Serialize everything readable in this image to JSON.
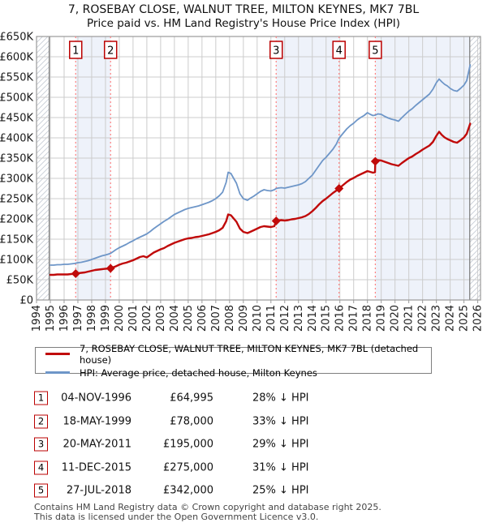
{
  "header": {
    "title": "7, ROSEBAY CLOSE, WALNUT TREE, MILTON KEYNES, MK7 7BL",
    "subtitle": "Price paid vs. HM Land Registry's House Price Index (HPI)"
  },
  "legend": {
    "items": [
      {
        "label": "7, ROSEBAY CLOSE, WALNUT TREE, MILTON KEYNES, MK7 7BL (detached house)",
        "color": "#c00a0a"
      },
      {
        "label": "HPI: Average price, detached house, Milton Keynes",
        "color": "#6e96c8"
      }
    ]
  },
  "transactions": [
    {
      "n": "1",
      "date": "04-NOV-1996",
      "price": "£64,995",
      "delta": "28% ↓ HPI",
      "year": 1996.84,
      "value_k": 65
    },
    {
      "n": "2",
      "date": "18-MAY-1999",
      "price": "£78,000",
      "delta": "33% ↓ HPI",
      "year": 1999.37,
      "value_k": 78
    },
    {
      "n": "3",
      "date": "20-MAY-2011",
      "price": "£195,000",
      "delta": "29% ↓ HPI",
      "year": 2011.38,
      "value_k": 195
    },
    {
      "n": "4",
      "date": "11-DEC-2015",
      "price": "£275,000",
      "delta": "31% ↓ HPI",
      "year": 2015.94,
      "value_k": 275
    },
    {
      "n": "5",
      "date": "27-JUL-2018",
      "price": "£342,000",
      "delta": "25% ↓ HPI",
      "year": 2018.57,
      "value_k": 342
    }
  ],
  "footer": {
    "line1": "Contains HM Land Registry data © Crown copyright and database right 2025.",
    "line2": "This data is licensed under the Open Government Licence v3.0."
  },
  "chart_data": {
    "type": "line",
    "title": "7, ROSEBAY CLOSE, WALNUT TREE, MILTON KEYNES, MK7 7BL",
    "xlabel": "",
    "ylabel": "",
    "unit": "£K",
    "x_axis": {
      "min": 1994,
      "max": 2026.2,
      "years": [
        1994,
        1995,
        1996,
        1997,
        1998,
        1999,
        2000,
        2001,
        2002,
        2003,
        2004,
        2005,
        2006,
        2007,
        2008,
        2009,
        2010,
        2011,
        2012,
        2013,
        2014,
        2015,
        2016,
        2017,
        2018,
        2019,
        2020,
        2021,
        2022,
        2023,
        2024,
        2025,
        2026
      ]
    },
    "y_axis": {
      "min": 0,
      "max": 650,
      "tick_values": [
        0,
        50,
        100,
        150,
        200,
        250,
        300,
        350,
        400,
        450,
        500,
        550,
        600,
        650
      ],
      "tick_labels": [
        "£0",
        "£50K",
        "£100K",
        "£150K",
        "£200K",
        "£250K",
        "£300K",
        "£350K",
        "£400K",
        "£450K",
        "£500K",
        "£550K",
        "£600K",
        "£650K"
      ]
    },
    "grid": true,
    "legend_position": "below",
    "data_start_year": 1994.92,
    "data_end_year": 2025.42,
    "ownership_bands": [
      [
        1996.84,
        1999.37
      ],
      [
        2011.38,
        2015.94
      ],
      [
        2018.57,
        2025.42
      ]
    ],
    "style": {
      "price_color": "#c00a0a",
      "hpi_color": "#6e96c8",
      "band_fill": "#eef2fa",
      "marker_line": "#ff8080",
      "marker_box_border": "#bb0000",
      "grid_color": "#cccccc",
      "frame_color": "#9a9a9a",
      "boundary_color": "#777777",
      "hatch_color": "#c8cdd6"
    },
    "series": [
      {
        "name": "price_paid",
        "points": [
          [
            1995.0,
            62
          ],
          [
            1995.25,
            62
          ],
          [
            1995.5,
            63
          ],
          [
            1995.75,
            63
          ],
          [
            1996.0,
            63
          ],
          [
            1996.25,
            63
          ],
          [
            1996.5,
            64
          ],
          [
            1996.84,
            65
          ],
          [
            1997.0,
            66
          ],
          [
            1997.25,
            67
          ],
          [
            1997.5,
            68
          ],
          [
            1997.75,
            70
          ],
          [
            1998.0,
            72
          ],
          [
            1998.25,
            74
          ],
          [
            1998.5,
            75
          ],
          [
            1998.75,
            76
          ],
          [
            1999.0,
            77
          ],
          [
            1999.37,
            78
          ],
          [
            1999.5,
            80
          ],
          [
            1999.75,
            83
          ],
          [
            2000.0,
            87
          ],
          [
            2000.25,
            90
          ],
          [
            2000.5,
            92
          ],
          [
            2000.75,
            95
          ],
          [
            2001.0,
            98
          ],
          [
            2001.25,
            102
          ],
          [
            2001.5,
            106
          ],
          [
            2001.75,
            108
          ],
          [
            2002.0,
            105
          ],
          [
            2002.25,
            111
          ],
          [
            2002.5,
            117
          ],
          [
            2002.75,
            121
          ],
          [
            2003.0,
            125
          ],
          [
            2003.25,
            128
          ],
          [
            2003.5,
            133
          ],
          [
            2003.75,
            137
          ],
          [
            2004.0,
            141
          ],
          [
            2004.25,
            144
          ],
          [
            2004.5,
            147
          ],
          [
            2004.75,
            150
          ],
          [
            2005.0,
            152
          ],
          [
            2005.25,
            153
          ],
          [
            2005.5,
            155
          ],
          [
            2005.75,
            156
          ],
          [
            2006.0,
            158
          ],
          [
            2006.25,
            160
          ],
          [
            2006.5,
            162
          ],
          [
            2006.75,
            165
          ],
          [
            2007.0,
            168
          ],
          [
            2007.25,
            172
          ],
          [
            2007.5,
            178
          ],
          [
            2007.75,
            194
          ],
          [
            2007.9,
            211
          ],
          [
            2008.1,
            209
          ],
          [
            2008.3,
            201
          ],
          [
            2008.5,
            193
          ],
          [
            2008.75,
            176
          ],
          [
            2009.0,
            168
          ],
          [
            2009.3,
            165
          ],
          [
            2009.5,
            168
          ],
          [
            2009.75,
            172
          ],
          [
            2010.0,
            176
          ],
          [
            2010.25,
            180
          ],
          [
            2010.5,
            182
          ],
          [
            2010.75,
            181
          ],
          [
            2011.0,
            180
          ],
          [
            2011.25,
            182
          ],
          [
            2011.38,
            195
          ],
          [
            2011.5,
            196
          ],
          [
            2011.75,
            197
          ],
          [
            2012.0,
            196
          ],
          [
            2012.25,
            197
          ],
          [
            2012.5,
            199
          ],
          [
            2012.75,
            200
          ],
          [
            2013.0,
            202
          ],
          [
            2013.25,
            204
          ],
          [
            2013.5,
            207
          ],
          [
            2013.75,
            212
          ],
          [
            2014.0,
            219
          ],
          [
            2014.25,
            227
          ],
          [
            2014.5,
            236
          ],
          [
            2014.75,
            244
          ],
          [
            2015.0,
            250
          ],
          [
            2015.25,
            257
          ],
          [
            2015.5,
            264
          ],
          [
            2015.75,
            270
          ],
          [
            2015.94,
            275
          ],
          [
            2016.25,
            284
          ],
          [
            2016.5,
            291
          ],
          [
            2016.75,
            297
          ],
          [
            2017.0,
            301
          ],
          [
            2017.25,
            306
          ],
          [
            2017.5,
            310
          ],
          [
            2017.75,
            314
          ],
          [
            2018.0,
            318
          ],
          [
            2018.2,
            316
          ],
          [
            2018.4,
            314
          ],
          [
            2018.55,
            315
          ],
          [
            2018.57,
            342
          ],
          [
            2018.75,
            345
          ],
          [
            2019.0,
            344
          ],
          [
            2019.25,
            341
          ],
          [
            2019.5,
            338
          ],
          [
            2019.75,
            335
          ],
          [
            2020.0,
            333
          ],
          [
            2020.25,
            331
          ],
          [
            2020.5,
            338
          ],
          [
            2020.75,
            344
          ],
          [
            2021.0,
            350
          ],
          [
            2021.25,
            354
          ],
          [
            2021.5,
            360
          ],
          [
            2021.75,
            365
          ],
          [
            2022.0,
            371
          ],
          [
            2022.25,
            376
          ],
          [
            2022.5,
            381
          ],
          [
            2022.75,
            390
          ],
          [
            2023.0,
            405
          ],
          [
            2023.2,
            415
          ],
          [
            2023.4,
            407
          ],
          [
            2023.6,
            401
          ],
          [
            2023.8,
            397
          ],
          [
            2024.0,
            394
          ],
          [
            2024.25,
            390
          ],
          [
            2024.5,
            388
          ],
          [
            2024.75,
            394
          ],
          [
            2025.0,
            401
          ],
          [
            2025.2,
            410
          ],
          [
            2025.45,
            435
          ]
        ]
      },
      {
        "name": "hpi",
        "points": [
          [
            1995.0,
            86
          ],
          [
            1995.25,
            86
          ],
          [
            1995.5,
            87
          ],
          [
            1995.75,
            87
          ],
          [
            1996.0,
            88
          ],
          [
            1996.25,
            88
          ],
          [
            1996.5,
            89
          ],
          [
            1996.75,
            90
          ],
          [
            1997.0,
            92
          ],
          [
            1997.25,
            93
          ],
          [
            1997.5,
            95
          ],
          [
            1997.75,
            97
          ],
          [
            1998.0,
            100
          ],
          [
            1998.25,
            103
          ],
          [
            1998.5,
            106
          ],
          [
            1998.75,
            109
          ],
          [
            1999.0,
            111
          ],
          [
            1999.2,
            113
          ],
          [
            1999.37,
            115
          ],
          [
            1999.5,
            118
          ],
          [
            1999.75,
            124
          ],
          [
            2000.0,
            129
          ],
          [
            2000.25,
            133
          ],
          [
            2000.5,
            137
          ],
          [
            2000.75,
            142
          ],
          [
            2001.0,
            146
          ],
          [
            2001.25,
            151
          ],
          [
            2001.5,
            155
          ],
          [
            2001.75,
            159
          ],
          [
            2002.0,
            163
          ],
          [
            2002.25,
            169
          ],
          [
            2002.5,
            176
          ],
          [
            2002.75,
            182
          ],
          [
            2003.0,
            188
          ],
          [
            2003.25,
            194
          ],
          [
            2003.5,
            199
          ],
          [
            2003.75,
            205
          ],
          [
            2004.0,
            211
          ],
          [
            2004.25,
            215
          ],
          [
            2004.5,
            219
          ],
          [
            2004.75,
            223
          ],
          [
            2005.0,
            226
          ],
          [
            2005.25,
            228
          ],
          [
            2005.5,
            230
          ],
          [
            2005.75,
            232
          ],
          [
            2006.0,
            235
          ],
          [
            2006.25,
            238
          ],
          [
            2006.5,
            241
          ],
          [
            2006.75,
            245
          ],
          [
            2007.0,
            250
          ],
          [
            2007.25,
            257
          ],
          [
            2007.5,
            266
          ],
          [
            2007.75,
            290
          ],
          [
            2007.9,
            315
          ],
          [
            2008.1,
            312
          ],
          [
            2008.3,
            300
          ],
          [
            2008.5,
            288
          ],
          [
            2008.75,
            262
          ],
          [
            2009.0,
            250
          ],
          [
            2009.3,
            246
          ],
          [
            2009.5,
            251
          ],
          [
            2009.75,
            256
          ],
          [
            2010.0,
            262
          ],
          [
            2010.25,
            268
          ],
          [
            2010.5,
            272
          ],
          [
            2010.75,
            270
          ],
          [
            2011.0,
            269
          ],
          [
            2011.25,
            272
          ],
          [
            2011.38,
            275
          ],
          [
            2011.5,
            276
          ],
          [
            2011.75,
            277
          ],
          [
            2012.0,
            276
          ],
          [
            2012.25,
            278
          ],
          [
            2012.5,
            280
          ],
          [
            2012.75,
            282
          ],
          [
            2013.0,
            284
          ],
          [
            2013.25,
            287
          ],
          [
            2013.5,
            292
          ],
          [
            2013.75,
            300
          ],
          [
            2014.0,
            308
          ],
          [
            2014.25,
            320
          ],
          [
            2014.5,
            332
          ],
          [
            2014.75,
            344
          ],
          [
            2015.0,
            352
          ],
          [
            2015.25,
            362
          ],
          [
            2015.5,
            372
          ],
          [
            2015.75,
            385
          ],
          [
            2015.94,
            399
          ],
          [
            2016.25,
            412
          ],
          [
            2016.5,
            422
          ],
          [
            2016.75,
            430
          ],
          [
            2017.0,
            436
          ],
          [
            2017.25,
            444
          ],
          [
            2017.5,
            450
          ],
          [
            2017.75,
            455
          ],
          [
            2018.0,
            462
          ],
          [
            2018.2,
            458
          ],
          [
            2018.4,
            455
          ],
          [
            2018.57,
            456
          ],
          [
            2018.75,
            459
          ],
          [
            2019.0,
            458
          ],
          [
            2019.25,
            453
          ],
          [
            2019.5,
            449
          ],
          [
            2019.75,
            446
          ],
          [
            2020.0,
            444
          ],
          [
            2020.25,
            441
          ],
          [
            2020.5,
            450
          ],
          [
            2020.75,
            458
          ],
          [
            2021.0,
            466
          ],
          [
            2021.25,
            472
          ],
          [
            2021.5,
            480
          ],
          [
            2021.75,
            487
          ],
          [
            2022.0,
            494
          ],
          [
            2022.25,
            501
          ],
          [
            2022.5,
            508
          ],
          [
            2022.75,
            520
          ],
          [
            2023.0,
            536
          ],
          [
            2023.2,
            545
          ],
          [
            2023.4,
            538
          ],
          [
            2023.6,
            532
          ],
          [
            2023.8,
            528
          ],
          [
            2024.0,
            522
          ],
          [
            2024.25,
            517
          ],
          [
            2024.5,
            515
          ],
          [
            2024.75,
            522
          ],
          [
            2025.0,
            530
          ],
          [
            2025.2,
            541
          ],
          [
            2025.45,
            580
          ]
        ]
      }
    ]
  }
}
